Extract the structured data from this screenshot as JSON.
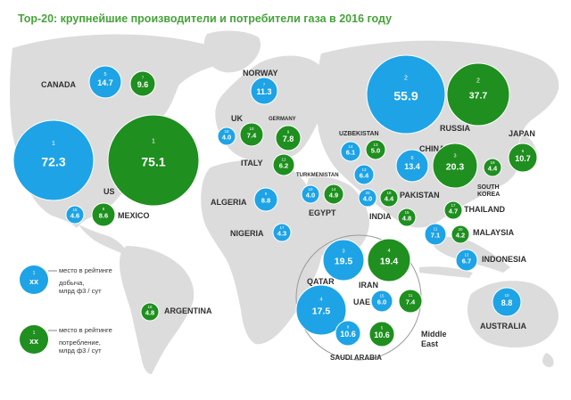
{
  "title": "Top-20: крупнейшие производители и потребители газа в 2016 году",
  "colors": {
    "production": "#1ea3e6",
    "consumption": "#1f8f1f",
    "land": "#dcdcdc",
    "label": "#2f2f2f"
  },
  "legend": {
    "production": {
      "rank": "1",
      "value": "xx",
      "line1": "место в рейтинге",
      "line2": "добыча,",
      "line3": "млрд ф3 / сут"
    },
    "consumption": {
      "rank": "1",
      "value": "xx",
      "line1": "место в рейтинге",
      "line2": "потребление,",
      "line3": "млрд ф3 / сут"
    }
  },
  "country_labels": [
    "CANADA",
    "NORWAY",
    "UK",
    "GERMANY",
    "ITALY",
    "UZBEKISTAN",
    "TURKMENISTAN",
    "CHINA",
    "JAPAN",
    "RUSSIA",
    "US",
    "MEXICO",
    "ALGERIA",
    "EGYPT",
    "PAKISTAN",
    "SOUTH",
    "KOREA",
    "INDIA",
    "THAILAND",
    "NIGERIA",
    "MALAYSIA",
    "INDONESIA",
    "QATAR",
    "IRAN",
    "UAE",
    "Middle",
    "East",
    "SAUDI ARABIA",
    "ARGENTINA",
    "AUSTRALIA"
  ],
  "chart_data": {
    "type": "bubble-map",
    "title": "Top-20: крупнейшие производители и потребители газа в 2016 году",
    "unit": "млрд ф3 / сут",
    "series": [
      {
        "name": "добыча",
        "color": "#1ea3e6",
        "points": [
          {
            "rank": "1",
            "value": "72.3"
          },
          {
            "rank": "2",
            "value": "55.9"
          },
          {
            "rank": "3",
            "value": "19.5"
          },
          {
            "rank": "4",
            "value": "17.5"
          },
          {
            "rank": "5",
            "value": "14.7"
          },
          {
            "rank": "6",
            "value": "13.4"
          },
          {
            "rank": "7",
            "value": "11.3"
          },
          {
            "rank": "8",
            "value": "10.6"
          },
          {
            "rank": "9",
            "value": "8.8"
          },
          {
            "rank": "10",
            "value": "8.8"
          },
          {
            "rank": "11",
            "value": "7.1"
          },
          {
            "rank": "12",
            "value": "6.7"
          },
          {
            "rank": "13",
            "value": "6.4"
          },
          {
            "rank": "14",
            "value": "6.1"
          },
          {
            "rank": "15",
            "value": "6.0"
          },
          {
            "rank": "16",
            "value": "4.6"
          },
          {
            "rank": "17",
            "value": "4.3"
          },
          {
            "rank": "18",
            "value": "4.0"
          },
          {
            "rank": "19",
            "value": "4.0"
          },
          {
            "rank": "20",
            "value": "4.0"
          }
        ]
      },
      {
        "name": "потребление",
        "color": "#1f8f1f",
        "points": [
          {
            "rank": "1",
            "value": "75.1"
          },
          {
            "rank": "2",
            "value": "37.7"
          },
          {
            "rank": "3",
            "value": "20.3"
          },
          {
            "rank": "4",
            "value": "19.4"
          },
          {
            "rank": "5",
            "value": "10.6"
          },
          {
            "rank": "6",
            "value": "10.7"
          },
          {
            "rank": "7",
            "value": "9.6"
          },
          {
            "rank": "8",
            "value": "8.6"
          },
          {
            "rank": "9",
            "value": "7.8"
          },
          {
            "rank": "10",
            "value": "7.4"
          },
          {
            "rank": "11",
            "value": "7.4"
          },
          {
            "rank": "12",
            "value": "6.2"
          },
          {
            "rank": "13",
            "value": "5.0"
          },
          {
            "rank": "14",
            "value": "4.9"
          },
          {
            "rank": "15",
            "value": "4.8"
          },
          {
            "rank": "16",
            "value": "4.8"
          },
          {
            "rank": "17",
            "value": "4.7"
          },
          {
            "rank": "18",
            "value": "4.4"
          },
          {
            "rank": "19",
            "value": "4.4"
          },
          {
            "rank": "20",
            "value": "4.2"
          }
        ]
      }
    ]
  }
}
